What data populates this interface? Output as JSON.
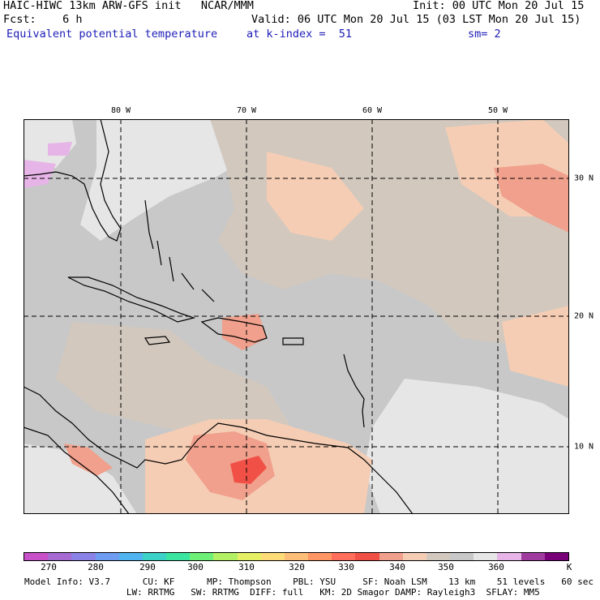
{
  "header": {
    "model_line": "HAIC-HIWC 13km ARW-GFS init   NCAR/MMM",
    "init_line": "Init: 00 UTC Mon 20 Jul 15",
    "fcst_line": "Fcst:    6 h",
    "valid_line": "Valid: 06 UTC Mon 20 Jul 15 (03 LST Mon 20 Jul 15)",
    "field_name": "Equivalent potential temperature",
    "level": "at k-index =  51",
    "smoothing": "sm= 2"
  },
  "map": {
    "lon_labels": [
      "80 W",
      "70 W",
      "60 W",
      "50 W"
    ],
    "lat_labels": [
      "30 N",
      "20 N",
      "10 N"
    ],
    "gridline_color": "#000000"
  },
  "colorbar": {
    "colors": [
      "#c850c8",
      "#a66ad2",
      "#8a82e6",
      "#6e9cf0",
      "#50b4f0",
      "#3cd2c8",
      "#3ce6a0",
      "#6ef078",
      "#b4f064",
      "#e6f064",
      "#ffdc78",
      "#ffbe78",
      "#ff9664",
      "#ff6e5a",
      "#f05046",
      "#f0a08c",
      "#f5cdb4",
      "#d2c8be",
      "#c8c8c8",
      "#e6e6e6",
      "#e6b4e6",
      "#a03ca0",
      "#780078"
    ],
    "tick_labels": [
      "270",
      "280",
      "290",
      "300",
      "310",
      "320",
      "330",
      "340",
      "350",
      "360",
      "K"
    ]
  },
  "footer": {
    "line1": "Model Info: V3.7      CU: KF      MP: Thompson    PBL: YSU     SF: Noah LSM    13 km    51 levels   60 sec",
    "line2": "                   LW: RRTMG   SW: RRTMG  DIFF: full   KM: 2D Smagor DAMP: Rayleigh3  SFLAY: MM5"
  }
}
